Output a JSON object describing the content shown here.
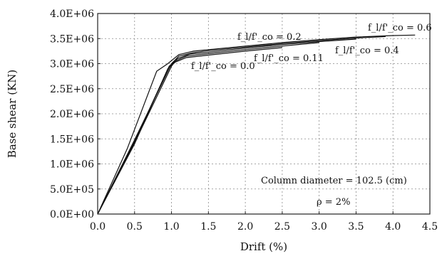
{
  "chart_data": {
    "type": "line",
    "title": "",
    "xlabel": "Drift (%)",
    "ylabel": "Base shear (KN)",
    "xlim": [
      0,
      4.5
    ],
    "ylim": [
      0,
      4000000
    ],
    "x_ticks": [
      "0.0",
      "0.5",
      "1.0",
      "1.5",
      "2.0",
      "2.5",
      "3.0",
      "3.5",
      "4.0",
      "4.5"
    ],
    "y_ticks": [
      "0.0E+00",
      "5.0E+05",
      "1.0E+06",
      "1.5E+06",
      "2.0E+06",
      "2.5E+06",
      "3.0E+06",
      "3.5E+06",
      "4.0E+06"
    ],
    "grid": true,
    "series": [
      {
        "name": "f_l/f'_co = 0.0",
        "points": [
          [
            0,
            0
          ],
          [
            0.5,
            1400000
          ],
          [
            0.95,
            2900000
          ],
          [
            1.05,
            3030000
          ],
          [
            1.2,
            3120000
          ],
          [
            1.5,
            3170000
          ],
          [
            2.0,
            3250000
          ],
          [
            2.5,
            3320000
          ]
        ]
      },
      {
        "name": "f_l/f'_co = 0.11",
        "points": [
          [
            0,
            0
          ],
          [
            0.5,
            1450000
          ],
          [
            0.97,
            2950000
          ],
          [
            1.05,
            3050000
          ],
          [
            1.2,
            3150000
          ],
          [
            1.5,
            3200000
          ],
          [
            2.0,
            3280000
          ],
          [
            2.5,
            3350000
          ],
          [
            3.0,
            3420000
          ]
        ]
      },
      {
        "name": "f_l/f'_co = 0.2",
        "points": [
          [
            0,
            0
          ],
          [
            0.5,
            1420000
          ],
          [
            1.0,
            2950000
          ],
          [
            1.08,
            3100000
          ],
          [
            1.25,
            3190000
          ],
          [
            1.5,
            3230000
          ],
          [
            2.0,
            3310000
          ],
          [
            2.5,
            3380000
          ],
          [
            3.0,
            3440000
          ],
          [
            3.5,
            3490000
          ]
        ]
      },
      {
        "name": "f_l/f'_co = 0.4",
        "points": [
          [
            0,
            0
          ],
          [
            0.5,
            1480000
          ],
          [
            1.0,
            3000000
          ],
          [
            1.1,
            3150000
          ],
          [
            1.3,
            3220000
          ],
          [
            1.5,
            3260000
          ],
          [
            2.0,
            3330000
          ],
          [
            2.5,
            3400000
          ],
          [
            3.0,
            3460000
          ],
          [
            3.5,
            3510000
          ],
          [
            3.9,
            3540000
          ]
        ]
      },
      {
        "name": "f_l/f'_co = 0.6",
        "points": [
          [
            0,
            0
          ],
          [
            0.4,
            1300000
          ],
          [
            0.8,
            2850000
          ],
          [
            0.95,
            3000000
          ],
          [
            1.1,
            3180000
          ],
          [
            1.3,
            3250000
          ],
          [
            1.5,
            3280000
          ],
          [
            2.0,
            3350000
          ],
          [
            2.5,
            3420000
          ],
          [
            3.0,
            3480000
          ],
          [
            3.5,
            3530000
          ],
          [
            4.0,
            3560000
          ],
          [
            4.3,
            3570000
          ]
        ]
      }
    ],
    "annotations": {
      "fl_00": "f_l/f'_co = 0.0",
      "fl_011": "f_l/f'_co = 0.11",
      "fl_02": "f_l/f'_co = 0.2",
      "fl_04": "f_l/f'_co = 0.4",
      "fl_06": "f_l/f'_co = 0.6",
      "column_diameter": "Column diameter = 102.5 (cm)",
      "rho": "ρ = 2%"
    }
  }
}
